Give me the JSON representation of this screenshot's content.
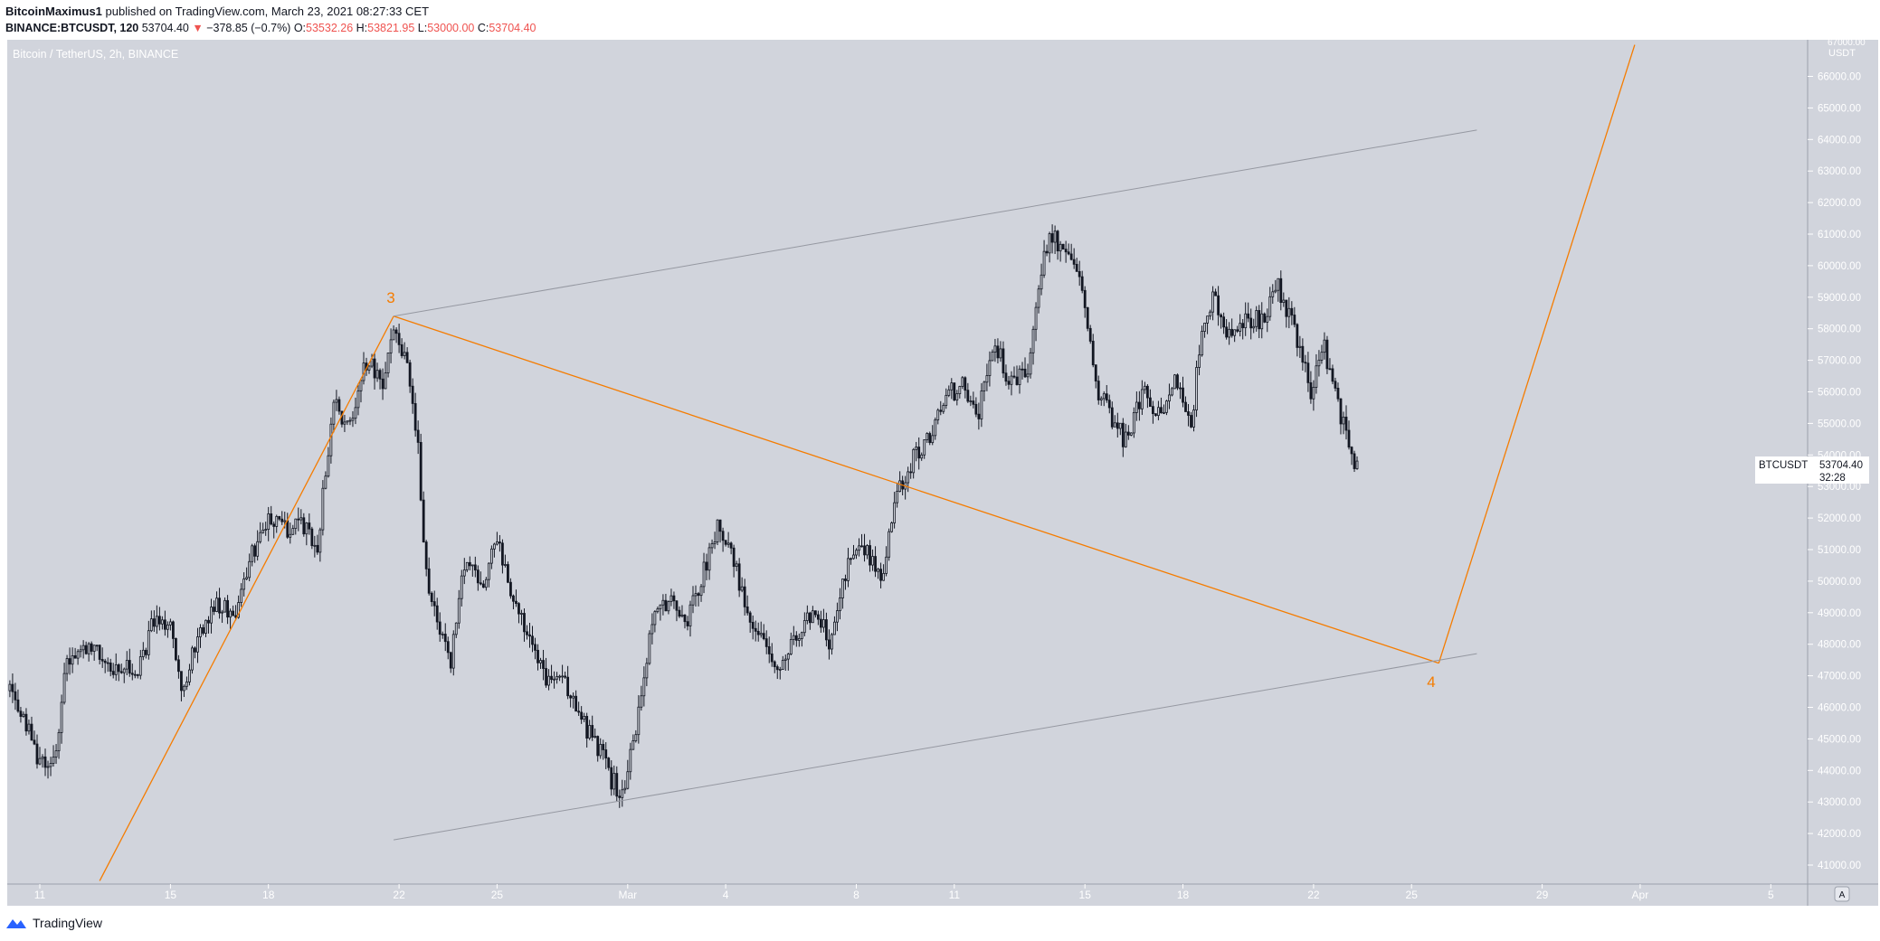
{
  "header": {
    "author": "BitcoinMaximus1",
    "published_text": "published on TradingView.com, March 23, 2021 08:27:33 CET",
    "symbol": "BINANCE:BTCUSDT, 120",
    "last": "53704.40",
    "change_arrow": "▼",
    "change": "−378.85 (−0.7%)",
    "o_label": "O:",
    "o": "53532.26",
    "h_label": "H:",
    "h": "53821.95",
    "l_label": "L:",
    "l": "53000.00",
    "c_label": "C:",
    "c": "53704.40"
  },
  "chart_title": "Bitcoin / TetherUS, 2h, BINANCE",
  "price_axis": {
    "currency": "USDT",
    "ticks": [
      "41000.00",
      "42000.00",
      "43000.00",
      "44000.00",
      "45000.00",
      "46000.00",
      "47000.00",
      "48000.00",
      "49000.00",
      "50000.00",
      "51000.00",
      "52000.00",
      "53000.00",
      "54000.00",
      "55000.00",
      "56000.00",
      "57000.00",
      "58000.00",
      "59000.00",
      "60000.00",
      "61000.00",
      "62000.00",
      "63000.00",
      "64000.00",
      "65000.00",
      "66000.00"
    ],
    "top_partial": "67000.00"
  },
  "time_axis": {
    "ticks": [
      "11",
      "15",
      "18",
      "22",
      "25",
      "Mar",
      "4",
      "8",
      "11",
      "15",
      "18",
      "22",
      "25",
      "29",
      "Apr",
      "5"
    ],
    "auto_button": "A"
  },
  "price_label": {
    "symbol": "BTCUSDT",
    "price": "53704.40",
    "countdown": "32:28"
  },
  "wave_labels": [
    "3",
    "4"
  ],
  "colors": {
    "plot_bg": "#d1d4dc",
    "candle": "#131722",
    "orange": "#f57c00",
    "channel": "#9598a1",
    "tv_logo": "#2962ff"
  },
  "icons": {
    "logo": "tradingview-logo-icon"
  },
  "footer": {
    "brand": "TradingView"
  },
  "chart_data": {
    "type": "candlestick",
    "title": "Bitcoin / TetherUS, 2h, BINANCE",
    "symbol": "BINANCE:BTCUSDT",
    "interval": "2h",
    "x_range": [
      "2021-02-10",
      "2021-04-07"
    ],
    "y_range": [
      40500,
      67000
    ],
    "path": [
      [
        "2021-02-10 00:00",
        46800
      ],
      [
        "2021-02-10 12:00",
        45700
      ],
      [
        "2021-02-11 00:00",
        44200
      ],
      [
        "2021-02-11 12:00",
        44500
      ],
      [
        "2021-02-11 20:00",
        47600
      ],
      [
        "2021-02-12 12:00",
        48000
      ],
      [
        "2021-02-13 00:00",
        47400
      ],
      [
        "2021-02-14 00:00",
        47100
      ],
      [
        "2021-02-14 12:00",
        48800
      ],
      [
        "2021-02-15 00:00",
        48400
      ],
      [
        "2021-02-15 08:00",
        46300
      ],
      [
        "2021-02-15 16:00",
        47800
      ],
      [
        "2021-02-16 00:00",
        48600
      ],
      [
        "2021-02-16 12:00",
        49300
      ],
      [
        "2021-02-17 00:00",
        48900
      ],
      [
        "2021-02-17 12:00",
        50800
      ],
      [
        "2021-02-18 00:00",
        52100
      ],
      [
        "2021-02-18 12:00",
        51600
      ],
      [
        "2021-02-19 00:00",
        51900
      ],
      [
        "2021-02-19 12:00",
        51200
      ],
      [
        "2021-02-20 00:00",
        55600
      ],
      [
        "2021-02-20 12:00",
        55000
      ],
      [
        "2021-02-21 00:00",
        57000
      ],
      [
        "2021-02-21 12:00",
        56400
      ],
      [
        "2021-02-21 20:00",
        58200
      ],
      [
        "2021-02-22 06:00",
        56900
      ],
      [
        "2021-02-22 14:00",
        54200
      ],
      [
        "2021-02-22 20:00",
        50200
      ],
      [
        "2021-02-23 06:00",
        48500
      ],
      [
        "2021-02-23 14:00",
        47500
      ],
      [
        "2021-02-24 00:00",
        50600
      ],
      [
        "2021-02-24 12:00",
        49800
      ],
      [
        "2021-02-25 00:00",
        51200
      ],
      [
        "2021-02-25 12:00",
        49300
      ],
      [
        "2021-02-26 00:00",
        48100
      ],
      [
        "2021-02-26 12:00",
        46700
      ],
      [
        "2021-02-27 00:00",
        47200
      ],
      [
        "2021-02-27 12:00",
        45600
      ],
      [
        "2021-02-28 00:00",
        45000
      ],
      [
        "2021-02-28 12:00",
        43700
      ],
      [
        "2021-02-28 20:00",
        43300
      ],
      [
        "2021-03-01 06:00",
        45400
      ],
      [
        "2021-03-01 18:00",
        48600
      ],
      [
        "2021-03-02 06:00",
        49400
      ],
      [
        "2021-03-02 18:00",
        48500
      ],
      [
        "2021-03-03 06:00",
        50000
      ],
      [
        "2021-03-03 18:00",
        51800
      ],
      [
        "2021-03-04 06:00",
        50600
      ],
      [
        "2021-03-04 18:00",
        48900
      ],
      [
        "2021-03-05 06:00",
        47800
      ],
      [
        "2021-03-05 16:00",
        47000
      ],
      [
        "2021-03-06 06:00",
        48500
      ],
      [
        "2021-03-06 18:00",
        49000
      ],
      [
        "2021-03-07 06:00",
        48000
      ],
      [
        "2021-03-07 18:00",
        50700
      ],
      [
        "2021-03-08 06:00",
        51000
      ],
      [
        "2021-03-08 18:00",
        50000
      ],
      [
        "2021-03-09 06:00",
        52700
      ],
      [
        "2021-03-09 18:00",
        53900
      ],
      [
        "2021-03-10 06:00",
        54500
      ],
      [
        "2021-03-10 18:00",
        55800
      ],
      [
        "2021-03-11 06:00",
        56300
      ],
      [
        "2021-03-11 18:00",
        55400
      ],
      [
        "2021-03-12 06:00",
        57500
      ],
      [
        "2021-03-12 18:00",
        56200
      ],
      [
        "2021-03-13 06:00",
        56800
      ],
      [
        "2021-03-13 14:00",
        59200
      ],
      [
        "2021-03-13 22:00",
        61200
      ],
      [
        "2021-03-14 10:00",
        60300
      ],
      [
        "2021-03-14 22:00",
        59500
      ],
      [
        "2021-03-15 08:00",
        56200
      ],
      [
        "2021-03-15 18:00",
        55300
      ],
      [
        "2021-03-16 06:00",
        54400
      ],
      [
        "2021-03-16 18:00",
        56000
      ],
      [
        "2021-03-17 06:00",
        55300
      ],
      [
        "2021-03-17 18:00",
        56300
      ],
      [
        "2021-03-18 06:00",
        55000
      ],
      [
        "2021-03-18 14:00",
        58000
      ],
      [
        "2021-03-18 22:00",
        59000
      ],
      [
        "2021-03-19 10:00",
        57800
      ],
      [
        "2021-03-19 22:00",
        58400
      ],
      [
        "2021-03-20 10:00",
        58200
      ],
      [
        "2021-03-20 22:00",
        59300
      ],
      [
        "2021-03-21 10:00",
        58000
      ],
      [
        "2021-03-21 22:00",
        56100
      ],
      [
        "2021-03-22 08:00",
        57400
      ],
      [
        "2021-03-22 18:00",
        55600
      ],
      [
        "2021-03-23 04:00",
        54000
      ],
      [
        "2021-03-23 08:00",
        53704
      ]
    ],
    "last_close": 53704.4,
    "annotations": [
      {
        "type": "trendline",
        "color": "orange",
        "from": [
          "2021-02-12 20:00",
          40500
        ],
        "to": [
          "2021-02-21 20:00",
          58400
        ]
      },
      {
        "type": "trendline",
        "color": "orange",
        "from": [
          "2021-02-21 20:00",
          58400
        ],
        "to": [
          "2021-03-25 20:00",
          47400
        ]
      },
      {
        "type": "trendline",
        "color": "orange",
        "from": [
          "2021-03-25 20:00",
          47400
        ],
        "to": [
          "2021-03-31 20:00",
          67000
        ]
      },
      {
        "type": "trendline",
        "color": "gray",
        "from": [
          "2021-02-21 20:00",
          58400
        ],
        "to": [
          "2021-03-27 00:00",
          64300
        ]
      },
      {
        "type": "trendline",
        "color": "gray",
        "from": [
          "2021-02-21 20:00",
          41800
        ],
        "to": [
          "2021-03-27 00:00",
          47700
        ]
      },
      {
        "type": "label",
        "text": "3",
        "at": [
          "2021-02-21 20:00",
          58400
        ]
      },
      {
        "type": "label",
        "text": "4",
        "at": [
          "2021-03-25 20:00",
          47400
        ]
      }
    ]
  }
}
